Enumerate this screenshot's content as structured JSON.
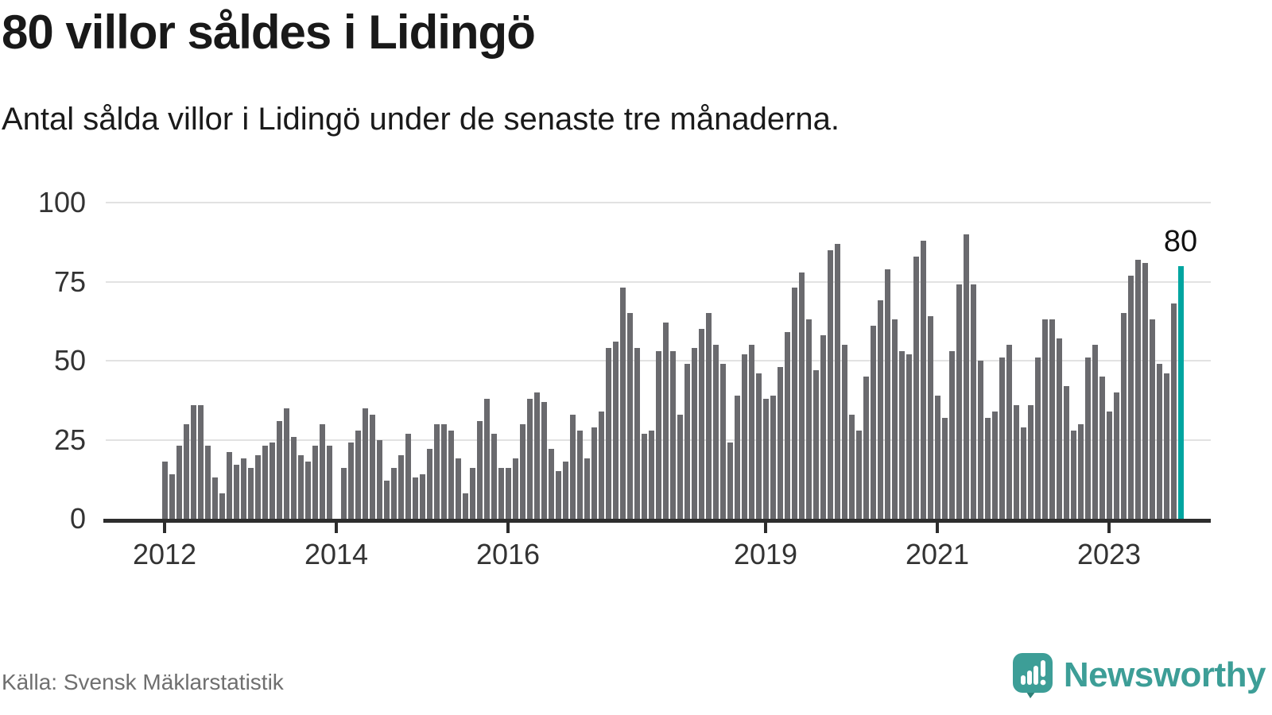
{
  "header": {
    "title": "80 villor såldes i Lidingö",
    "subtitle": "Antal sålda villor i Lidingö under de senaste tre månaderna."
  },
  "footer": {
    "source": "Källa: Svensk Mäklarstatistik",
    "brand": "Newsworthy"
  },
  "colors": {
    "bar": "#6a6a6e",
    "highlight": "#00a5a0",
    "gridline": "#e2e2e2",
    "axis": "#2d2d2d",
    "axis_text": "#333333",
    "logo_teal": "#3d9e97",
    "logo_tail": "#2e8078"
  },
  "chart_data": {
    "type": "bar",
    "title": "80 villor såldes i Lidingö",
    "subtitle": "Antal sålda villor i Lidingö under de senaste tre månaderna.",
    "ylabel": "",
    "xlabel": "",
    "ylim": [
      0,
      100
    ],
    "y_ticks": [
      0,
      25,
      50,
      75,
      100
    ],
    "x_tick_years": [
      2012,
      2014,
      2016,
      2019,
      2021,
      2023
    ],
    "grid": "horizontal",
    "legend": "none",
    "start_month": "2012-01",
    "end_month": "2023-11",
    "highlight": {
      "position": "last",
      "value": 80,
      "label": "80"
    },
    "values_by_year": [
      {
        "year": 2012,
        "values": [
          18,
          14,
          23,
          30,
          36,
          36,
          23,
          13,
          8,
          21,
          17,
          19
        ]
      },
      {
        "year": 2013,
        "values": [
          16,
          20,
          23,
          24,
          31,
          35,
          26,
          20,
          18,
          23,
          30,
          23
        ]
      },
      {
        "year": 2014,
        "values": [
          0,
          16,
          24,
          28,
          35,
          33,
          25,
          12,
          16,
          20,
          27,
          13
        ]
      },
      {
        "year": 2015,
        "values": [
          14,
          22,
          30,
          30,
          28,
          19,
          8,
          16,
          31,
          38,
          27,
          16
        ]
      },
      {
        "year": 2016,
        "values": [
          16,
          19,
          30,
          38,
          40,
          37,
          22,
          15,
          18,
          33,
          28,
          19
        ]
      },
      {
        "year": 2017,
        "values": [
          29,
          34,
          54,
          56,
          73,
          65,
          54,
          27,
          28,
          53,
          62,
          53
        ]
      },
      {
        "year": 2018,
        "values": [
          33,
          49,
          54,
          60,
          65,
          55,
          49,
          24,
          39,
          52,
          55,
          46
        ]
      },
      {
        "year": 2019,
        "values": [
          38,
          39,
          48,
          59,
          73,
          78,
          63,
          47,
          58,
          85,
          87,
          55
        ]
      },
      {
        "year": 2020,
        "values": [
          33,
          28,
          45,
          61,
          69,
          79,
          63,
          53,
          52,
          83,
          88,
          64
        ]
      },
      {
        "year": 2021,
        "values": [
          39,
          32,
          53,
          74,
          90,
          74,
          50,
          32,
          34,
          51,
          55,
          36
        ]
      },
      {
        "year": 2022,
        "values": [
          29,
          36,
          51,
          63,
          63,
          57,
          42,
          28,
          30,
          51,
          55,
          45
        ]
      },
      {
        "year": 2023,
        "values": [
          34,
          40,
          65,
          77,
          82,
          81,
          63,
          49,
          46,
          68,
          80
        ]
      }
    ]
  }
}
